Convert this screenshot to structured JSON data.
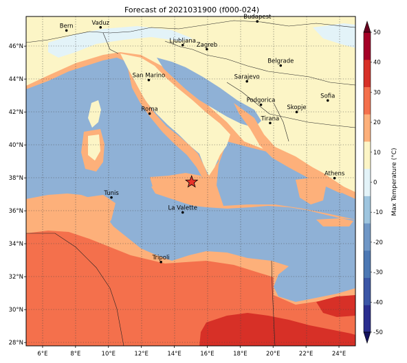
{
  "title": "Forecast of 2021031900 (f000-024)",
  "lon_ticks": [
    "6°E",
    "8°E",
    "10°E",
    "12°E",
    "14°E",
    "16°E",
    "18°E",
    "20°E",
    "22°E",
    "24°E"
  ],
  "lat_ticks": [
    "28°N",
    "30°N",
    "32°N",
    "34°N",
    "36°N",
    "38°N",
    "40°N",
    "42°N",
    "44°N",
    "46°N"
  ],
  "extent": {
    "lon": [
      5,
      25
    ],
    "lat": [
      27.8,
      47.8
    ]
  },
  "cities": [
    {
      "name": "Bern",
      "lon": 7.45,
      "lat": 46.95
    },
    {
      "name": "Vaduz",
      "lon": 9.52,
      "lat": 47.14
    },
    {
      "name": "Budapest",
      "lon": 19.04,
      "lat": 47.5
    },
    {
      "name": "Ljubljana",
      "lon": 14.51,
      "lat": 46.06
    },
    {
      "name": "Zagreb",
      "lon": 15.98,
      "lat": 45.81
    },
    {
      "name": "Belgrade",
      "lon": 20.46,
      "lat": 44.82
    },
    {
      "name": "San Marino",
      "lon": 12.45,
      "lat": 43.94
    },
    {
      "name": "Sarajevo",
      "lon": 18.41,
      "lat": 43.86
    },
    {
      "name": "Sofia",
      "lon": 23.32,
      "lat": 42.7
    },
    {
      "name": "Podgorica",
      "lon": 19.26,
      "lat": 42.44
    },
    {
      "name": "Skopje",
      "lon": 21.43,
      "lat": 42.0
    },
    {
      "name": "Roma",
      "lon": 12.5,
      "lat": 41.9
    },
    {
      "name": "Tirana",
      "lon": 19.82,
      "lat": 41.33
    },
    {
      "name": "Athens",
      "lon": 23.73,
      "lat": 37.98
    },
    {
      "name": "Tunis",
      "lon": 10.18,
      "lat": 36.81
    },
    {
      "name": "La Valette",
      "lon": 14.51,
      "lat": 35.9
    },
    {
      "name": "Tripoli",
      "lon": 13.19,
      "lat": 32.89
    }
  ],
  "marker": {
    "lon": 15.05,
    "lat": 37.75,
    "color": "#e8332a"
  },
  "colorbar": {
    "label": "Max Temperature (°C)",
    "ticks": [
      "-50",
      "-40",
      "-30",
      "-20",
      "-10",
      "0",
      "10",
      "20",
      "30",
      "40",
      "50"
    ],
    "colors": [
      "#2a2e8f",
      "#3b56a6",
      "#4c78b4",
      "#6f97c6",
      "#9ec5df",
      "#e3f3f8",
      "#fcf5c6",
      "#fdb07a",
      "#f4704c",
      "#d73027",
      "#a50026"
    ]
  }
}
